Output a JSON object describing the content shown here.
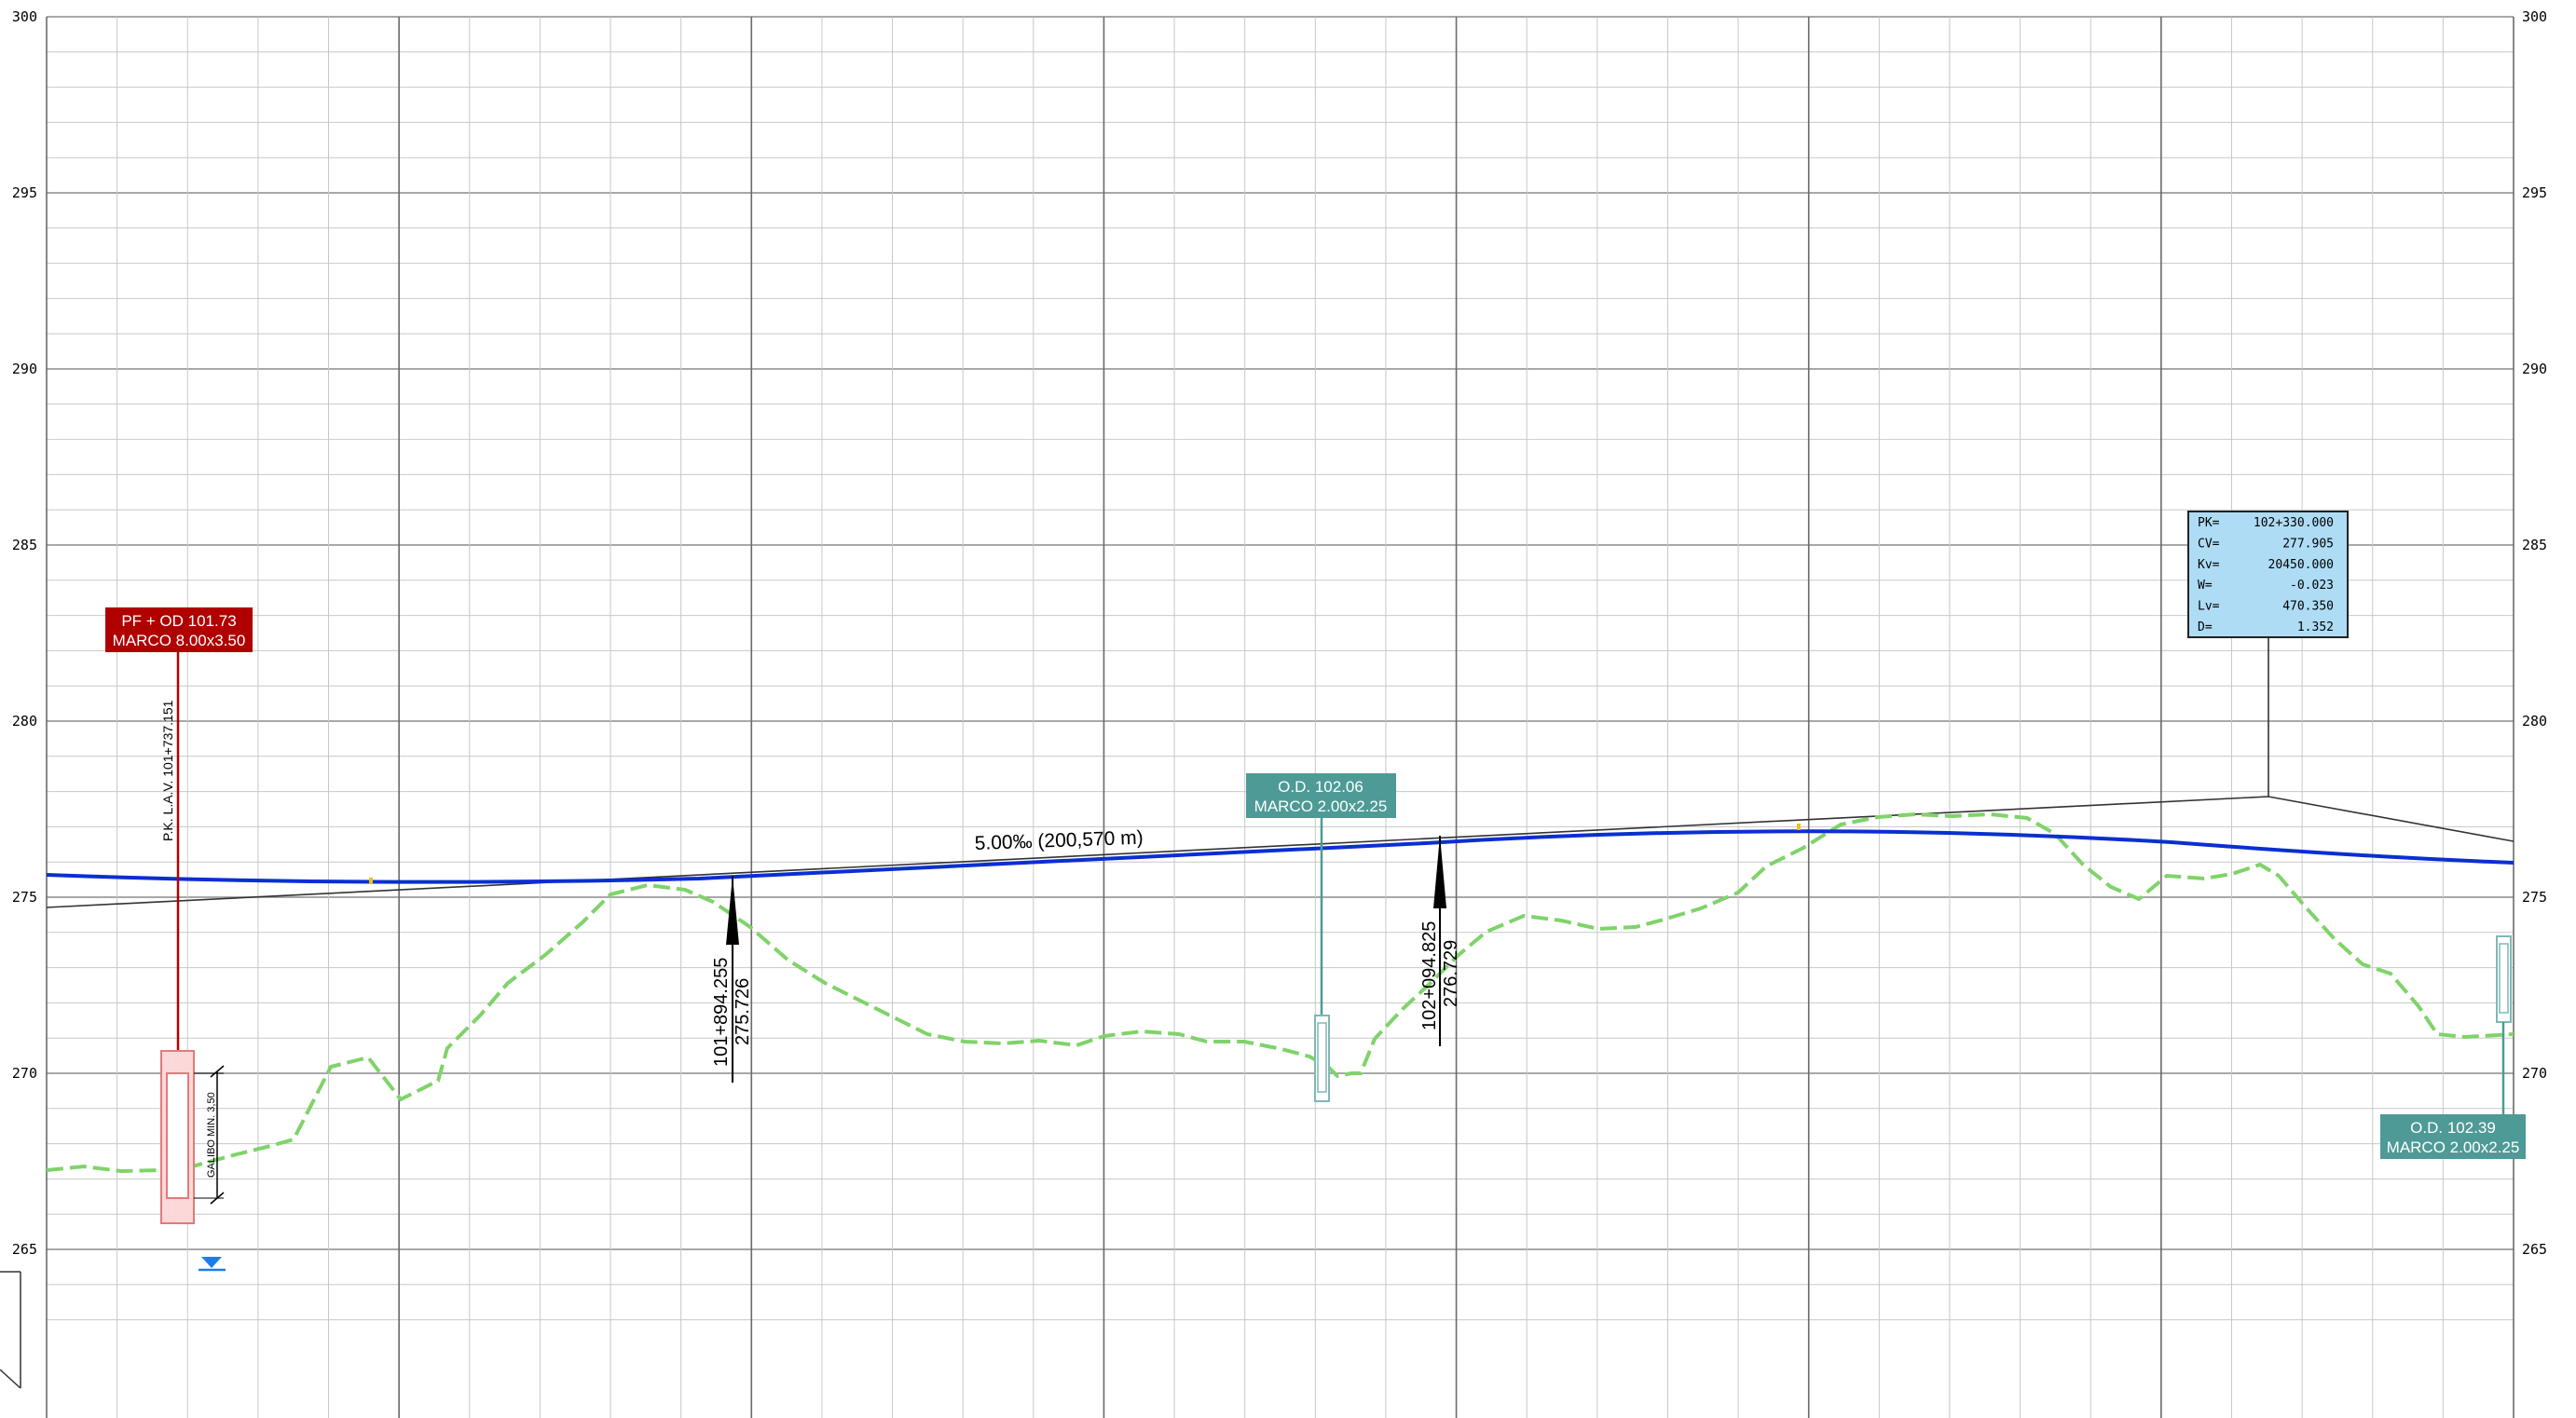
{
  "axis": {
    "y_min": 263,
    "y_max": 300,
    "labeled_ticks": [
      "300",
      "295",
      "290",
      "285",
      "280",
      "275",
      "270",
      "265"
    ]
  },
  "grade": {
    "text": "5.00‰ (200,570 m)",
    "line_color": "#0a2fd1"
  },
  "terrain": {
    "line_color": "#7fd36a"
  },
  "structures": {
    "pf": {
      "line1": "PF + OD 101.73",
      "line2": "MARCO 8.00x3.50",
      "pk_text": "P.K. L.A.V. 101+737.151",
      "gauge_text": "GALIBO MIN. 3,50",
      "color": "#b00000"
    },
    "od1": {
      "line1": "O.D. 102.06",
      "line2": "MARCO 2.00x2.25",
      "color": "#4e9a96"
    },
    "od2": {
      "line1": "O.D. 102.39",
      "line2": "MARCO 2.00x2.25",
      "color": "#4e9a96"
    }
  },
  "stations": {
    "s1": {
      "pk": "101+894.255",
      "elev": "275.726"
    },
    "s2": {
      "pk": "102+094.825",
      "elev": "276.729"
    }
  },
  "vertical_curve": {
    "fill": "#aedcf5",
    "rows": [
      {
        "key": "PK=",
        "value": "102+330.000"
      },
      {
        "key": "CV=",
        "value": "277.905"
      },
      {
        "key": "Kv=",
        "value": "20450.000"
      },
      {
        "key": "W=",
        "value": "-0.023"
      },
      {
        "key": "Lv=",
        "value": "470.350"
      },
      {
        "key": "D=",
        "value": "1.352"
      }
    ]
  }
}
